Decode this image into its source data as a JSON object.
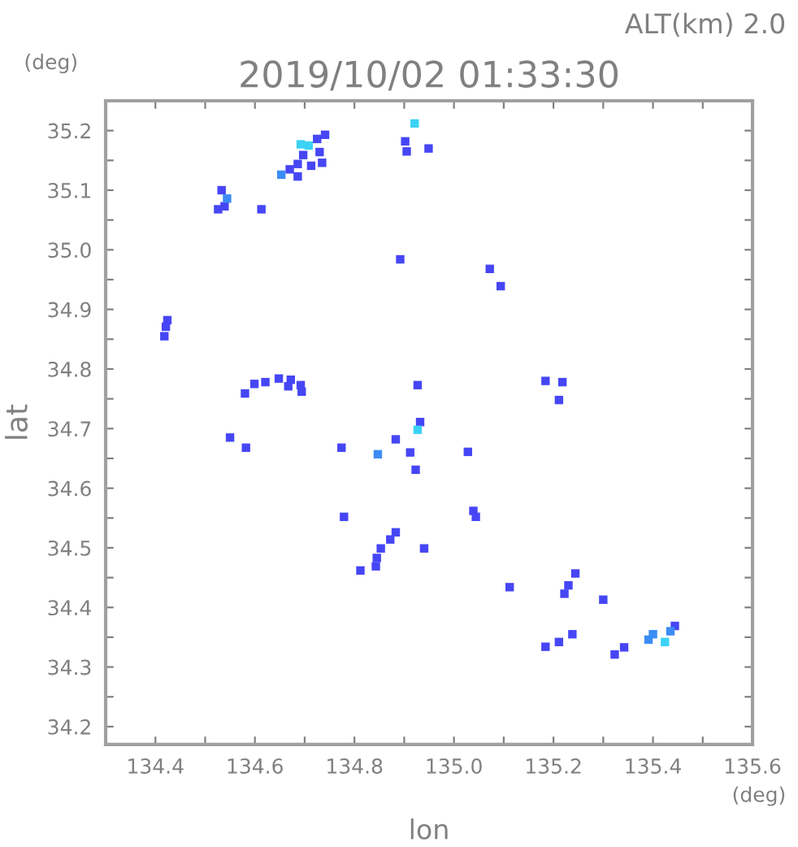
{
  "chart_data": {
    "type": "scatter",
    "title": "2019/10/02 01:33:30",
    "xlabel": "lon",
    "ylabel": "lat",
    "annotations": [
      "ALT(km) 2.0",
      "(deg)",
      "(deg)"
    ],
    "marker": "square",
    "grid": false,
    "legend": false,
    "xlim": [
      134.3,
      135.6
    ],
    "ylim": [
      34.17,
      35.25
    ],
    "xticks": [
      134.4,
      {
        "value": 134.5,
        "label": null
      },
      134.6,
      {
        "value": 134.7,
        "label": null
      },
      134.8,
      {
        "value": 134.9,
        "label": null
      },
      {
        "value": 135.0,
        "label": "135.0"
      },
      {
        "value": 135.1,
        "label": null
      },
      135.2,
      {
        "value": 135.3,
        "label": null
      },
      135.4,
      {
        "value": 135.5,
        "label": null
      },
      135.6
    ],
    "yticks": [
      34.2,
      {
        "value": 34.25,
        "label": null
      },
      34.3,
      {
        "value": 34.35,
        "label": null
      },
      34.4,
      {
        "value": 34.45,
        "label": null
      },
      34.5,
      {
        "value": 34.55,
        "label": null
      },
      34.6,
      {
        "value": 34.65,
        "label": null
      },
      34.7,
      {
        "value": 34.75,
        "label": null
      },
      34.8,
      {
        "value": 34.85,
        "label": null
      },
      34.9,
      {
        "value": 34.95,
        "label": null
      },
      {
        "value": 35.0,
        "label": "35.0"
      },
      {
        "value": 35.05,
        "label": null
      },
      35.1,
      {
        "value": 35.15,
        "label": null
      },
      35.2
    ],
    "series": [
      {
        "color": "#4646f5",
        "x": [
          134.67,
          134.686,
          134.697,
          134.725,
          134.741,
          134.73,
          134.735,
          134.686,
          134.713,
          134.533,
          134.539,
          134.526,
          134.905,
          134.949,
          134.902,
          134.613,
          134.892,
          134.424,
          134.421,
          134.418,
          135.072,
          135.094,
          134.58,
          134.599,
          134.621,
          134.648,
          134.672,
          134.692,
          134.694,
          134.667,
          134.55,
          134.582,
          134.774,
          134.883,
          134.932,
          134.923,
          134.927,
          134.912,
          134.779,
          134.872,
          134.853,
          134.845,
          134.843,
          134.812,
          134.883,
          134.94,
          135.184,
          135.218,
          135.211,
          135.028,
          135.039,
          135.044,
          135.112,
          135.23,
          135.222,
          135.244,
          135.3,
          135.184,
          135.211,
          135.238,
          135.323,
          135.342,
          135.444
        ],
        "values": [
          35.135,
          35.144,
          35.159,
          35.186,
          35.193,
          35.164,
          35.146,
          35.123,
          35.141,
          35.1,
          35.073,
          35.068,
          35.165,
          35.17,
          35.182,
          35.068,
          34.984,
          34.882,
          34.871,
          34.855,
          34.968,
          34.939,
          34.759,
          34.775,
          34.778,
          34.784,
          34.782,
          34.773,
          34.762,
          34.771,
          34.685,
          34.668,
          34.668,
          34.682,
          34.711,
          34.631,
          34.773,
          34.66,
          34.552,
          34.514,
          34.499,
          34.483,
          34.469,
          34.462,
          34.526,
          34.499,
          34.78,
          34.778,
          34.748,
          34.661,
          34.562,
          34.552,
          34.434,
          34.437,
          34.423,
          34.457,
          34.413,
          34.334,
          34.342,
          34.355,
          34.321,
          34.333,
          34.369
        ]
      },
      {
        "color": "#3c8cf5",
        "x": [
          134.653,
          134.544,
          134.847,
          135.391,
          135.4,
          135.435
        ],
        "values": [
          35.126,
          35.086,
          34.657,
          34.346,
          34.355,
          34.36
        ]
      },
      {
        "color": "#3cd2f5",
        "x": [
          134.692,
          134.708,
          134.921,
          134.927,
          135.424
        ],
        "values": [
          35.177,
          35.175,
          35.212,
          34.698,
          34.342
        ]
      }
    ]
  }
}
